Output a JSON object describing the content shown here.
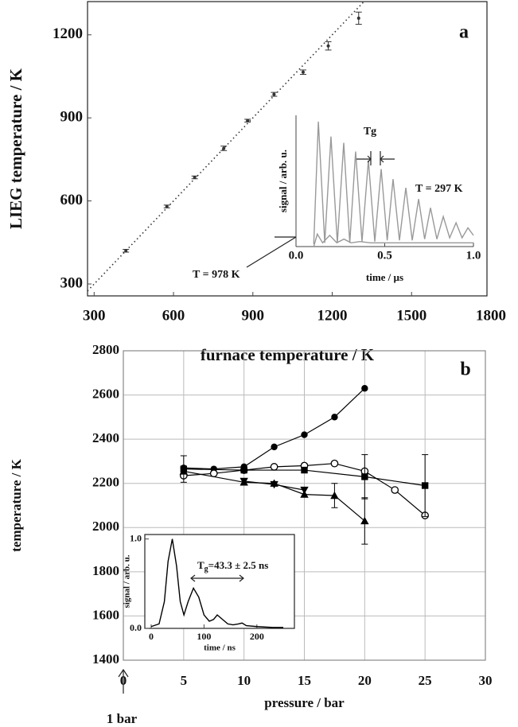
{
  "chart_data": [
    {
      "type": "scatter",
      "panel_label": "a",
      "xlabel": "furnace temperature / K",
      "ylabel": "LIEG temperature / K",
      "xlim": [
        275,
        1785
      ],
      "ylim": [
        257,
        1320
      ],
      "xticks": [
        300,
        600,
        900,
        1200,
        1500,
        1800
      ],
      "yticks": [
        300,
        600,
        900,
        1200
      ],
      "grid": false,
      "diagonal": true,
      "series": [
        {
          "color": "#333333",
          "marker": "dot",
          "x": [
            420,
            575,
            680,
            790,
            880,
            980,
            1090,
            1185,
            1300
          ],
          "values": [
            420,
            580,
            685,
            790,
            890,
            985,
            1065,
            1160,
            1260
          ],
          "errors": [
            5,
            5,
            5,
            8,
            5,
            7,
            8,
            15,
            22
          ]
        }
      ]
    },
    {
      "type": "line",
      "xlabel": "time / µs",
      "ylabel": "signal / arb. u.",
      "xlim": [
        0,
        1.0
      ],
      "ylim": [
        0,
        1.05
      ],
      "xticks": [
        {
          "value": 0,
          "label": "0.0"
        },
        0.5,
        {
          "value": 1,
          "label": "1.0"
        }
      ],
      "annotations": [
        "Tg",
        "T = 297 K",
        "T = 978 K"
      ],
      "series": [
        {
          "color": "#999999",
          "x": [
            0.1,
            0.126,
            0.162,
            0.197,
            0.233,
            0.269,
            0.303,
            0.336,
            0.372,
            0.408,
            0.444,
            0.48,
            0.514,
            0.547,
            0.583,
            0.619,
            0.655,
            0.691,
            0.725,
            0.758,
            0.794,
            0.83,
            0.866,
            0.902,
            0.936,
            0.969,
            1.0
          ],
          "values": [
            0.02,
            1.0,
            0.03,
            0.88,
            0.03,
            0.83,
            0.03,
            0.76,
            0.04,
            0.69,
            0.04,
            0.62,
            0.05,
            0.54,
            0.05,
            0.47,
            0.05,
            0.38,
            0.06,
            0.31,
            0.06,
            0.24,
            0.07,
            0.19,
            0.07,
            0.15,
            0.09
          ]
        },
        {
          "color": "#999999",
          "x": [
            0.1,
            0.12,
            0.15,
            0.19,
            0.23,
            0.27,
            0.31,
            0.36,
            0.42,
            0.5,
            1.0
          ],
          "values": [
            0.0,
            0.1,
            0.03,
            0.09,
            0.03,
            0.06,
            0.03,
            0.04,
            0.03,
            0.03,
            0.03
          ]
        }
      ]
    },
    {
      "type": "line",
      "panel_label": "b",
      "xlabel": "pressure / bar",
      "ylabel": "temperature / K",
      "note": "1 bar",
      "xlim": [
        0,
        30
      ],
      "ylim": [
        1400,
        2800
      ],
      "xticks": [
        0,
        5,
        10,
        15,
        20,
        25,
        30
      ],
      "yticks": [
        1400,
        1600,
        1800,
        2000,
        2200,
        2400,
        2600,
        2800
      ],
      "grid": true,
      "series": [
        {
          "color": "#000000",
          "marker": "filled-circle",
          "x": [
            5,
            7.5,
            10,
            12.5,
            15,
            17.5,
            20
          ],
          "values": [
            2270,
            2265,
            2275,
            2365,
            2420,
            2500,
            2630
          ]
        },
        {
          "color": "#000000",
          "marker": "open-circle",
          "x": [
            5,
            7.5,
            10,
            12.5,
            15,
            17.5,
            20,
            22.5,
            25
          ],
          "values": [
            2235,
            2245,
            2260,
            2275,
            2280,
            2290,
            2255,
            2170,
            2055
          ]
        },
        {
          "color": "#000000",
          "marker": "square",
          "x": [
            5,
            10,
            15,
            20,
            25
          ],
          "values": [
            2265,
            2260,
            2260,
            2230,
            2190
          ],
          "errors": [
            60,
            null,
            null,
            100,
            140
          ]
        },
        {
          "color": "#000000",
          "marker": "triangle",
          "x": [
            5,
            10,
            12.5,
            15,
            17.5,
            20
          ],
          "values": [
            2255,
            2205,
            2200,
            2150,
            2145,
            2030
          ],
          "errors": [
            null,
            null,
            null,
            null,
            55,
            105
          ]
        },
        {
          "color": "#000000",
          "marker": "triangle-down",
          "x": [
            10,
            12.5,
            15
          ],
          "values": [
            2210,
            2195,
            2170
          ]
        }
      ]
    },
    {
      "type": "line",
      "xlabel": "time / ns",
      "ylabel": "signal / arb. u.",
      "xlim": [
        -12,
        271
      ],
      "ylim": [
        0,
        1.05
      ],
      "xticks": [
        0,
        100,
        200
      ],
      "yticks": [
        {
          "value": 0,
          "label": "0.0"
        },
        {
          "value": 1,
          "label": "1.0"
        }
      ],
      "annotations": [
        {
          "text": "T",
          "subscript": "g",
          "text_after": "=43.3 ± 2.5 ns"
        }
      ],
      "series": [
        {
          "color": "#000000",
          "x": [
            0,
            15,
            25,
            32,
            40,
            48,
            55,
            62,
            70,
            80,
            90,
            100,
            110,
            118,
            125,
            135,
            145,
            155,
            165,
            172,
            180,
            200,
            230,
            250
          ],
          "values": [
            0.02,
            0.05,
            0.3,
            0.75,
            1.0,
            0.7,
            0.3,
            0.15,
            0.3,
            0.45,
            0.35,
            0.15,
            0.08,
            0.1,
            0.15,
            0.1,
            0.05,
            0.04,
            0.05,
            0.06,
            0.03,
            0.02,
            0.01,
            0.01
          ]
        }
      ]
    }
  ]
}
